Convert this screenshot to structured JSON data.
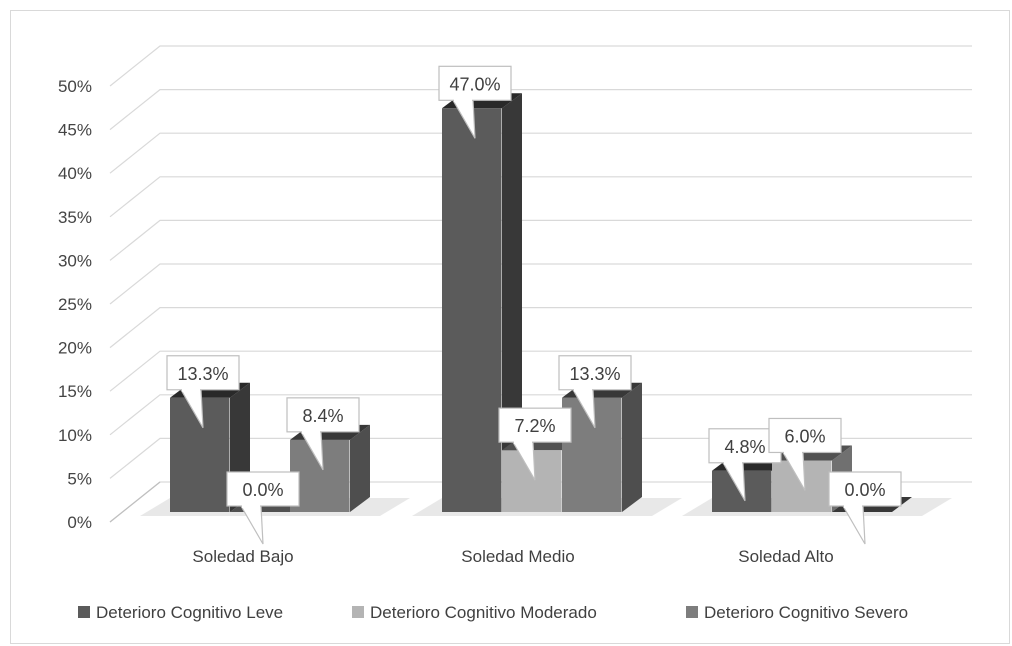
{
  "chart_data": {
    "type": "bar",
    "title": "",
    "xlabel": "",
    "ylabel": "",
    "ylim": [
      0,
      50
    ],
    "ytick_labels": [
      "0%",
      "5%",
      "10%",
      "15%",
      "20%",
      "25%",
      "30%",
      "35%",
      "40%",
      "45%",
      "50%"
    ],
    "categories": [
      "Soledad Bajo",
      "Soledad  Medio",
      "Soledad Alto"
    ],
    "series": [
      {
        "name": "Deterioro Cognitivo Leve",
        "values": [
          13.3,
          47.0,
          4.8
        ],
        "labels": [
          "13.3%",
          "47.0%",
          "4.8%"
        ],
        "color": "#5b5b5b"
      },
      {
        "name": "Deterioro Cognitivo Moderado",
        "values": [
          0.0,
          7.2,
          6.0
        ],
        "labels": [
          "0.0%",
          "7.2%",
          "6.0%"
        ],
        "color": "#b4b4b4"
      },
      {
        "name": "Deterioro Cognitivo Severo",
        "values": [
          8.4,
          13.3,
          0.0
        ],
        "labels": [
          "8.4%",
          "13.3%",
          "0.0%"
        ],
        "color": "#7d7d7d"
      }
    ],
    "grid": true,
    "legend": "bottom",
    "style": "3d-clustered-column"
  }
}
